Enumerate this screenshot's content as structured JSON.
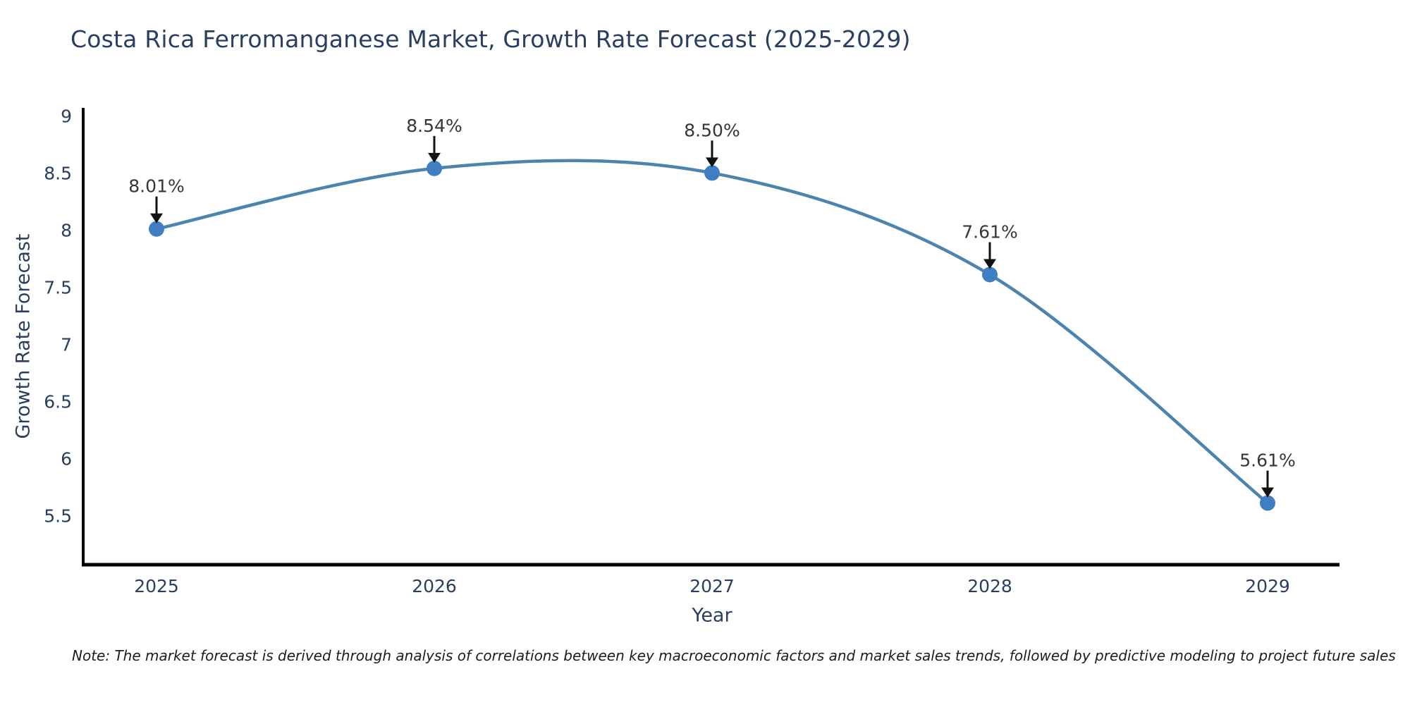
{
  "note": "Note: The market forecast is derived through analysis of correlations between key macroeconomic factors and market sales trends, followed by predictive modeling to project future sales",
  "chart_data": {
    "type": "line",
    "title": "Costa Rica Ferromanganese Market, Growth Rate Forecast (2025-2029)",
    "xlabel": "Year",
    "ylabel": "Growth Rate Forecast",
    "x": [
      "2025",
      "2026",
      "2027",
      "2028",
      "2029"
    ],
    "values": [
      8.01,
      8.54,
      8.5,
      7.61,
      5.61
    ],
    "point_labels": [
      "8.01%",
      "8.54%",
      "8.50%",
      "7.61%",
      "5.61%"
    ],
    "yticks": [
      9,
      8.5,
      8,
      7.5,
      7,
      6.5,
      6,
      5.5
    ],
    "ylim": [
      5.07,
      9.07
    ],
    "line_shape": "spline",
    "grid": false,
    "legend": "none",
    "colors": {
      "line": "#4c84ad",
      "marker": "#3f7fc1",
      "axis": "#000000",
      "tick_text": "#2a3f5f",
      "annotation_text": "#363636",
      "arrow": "#111111",
      "background": "#ffffff"
    }
  }
}
